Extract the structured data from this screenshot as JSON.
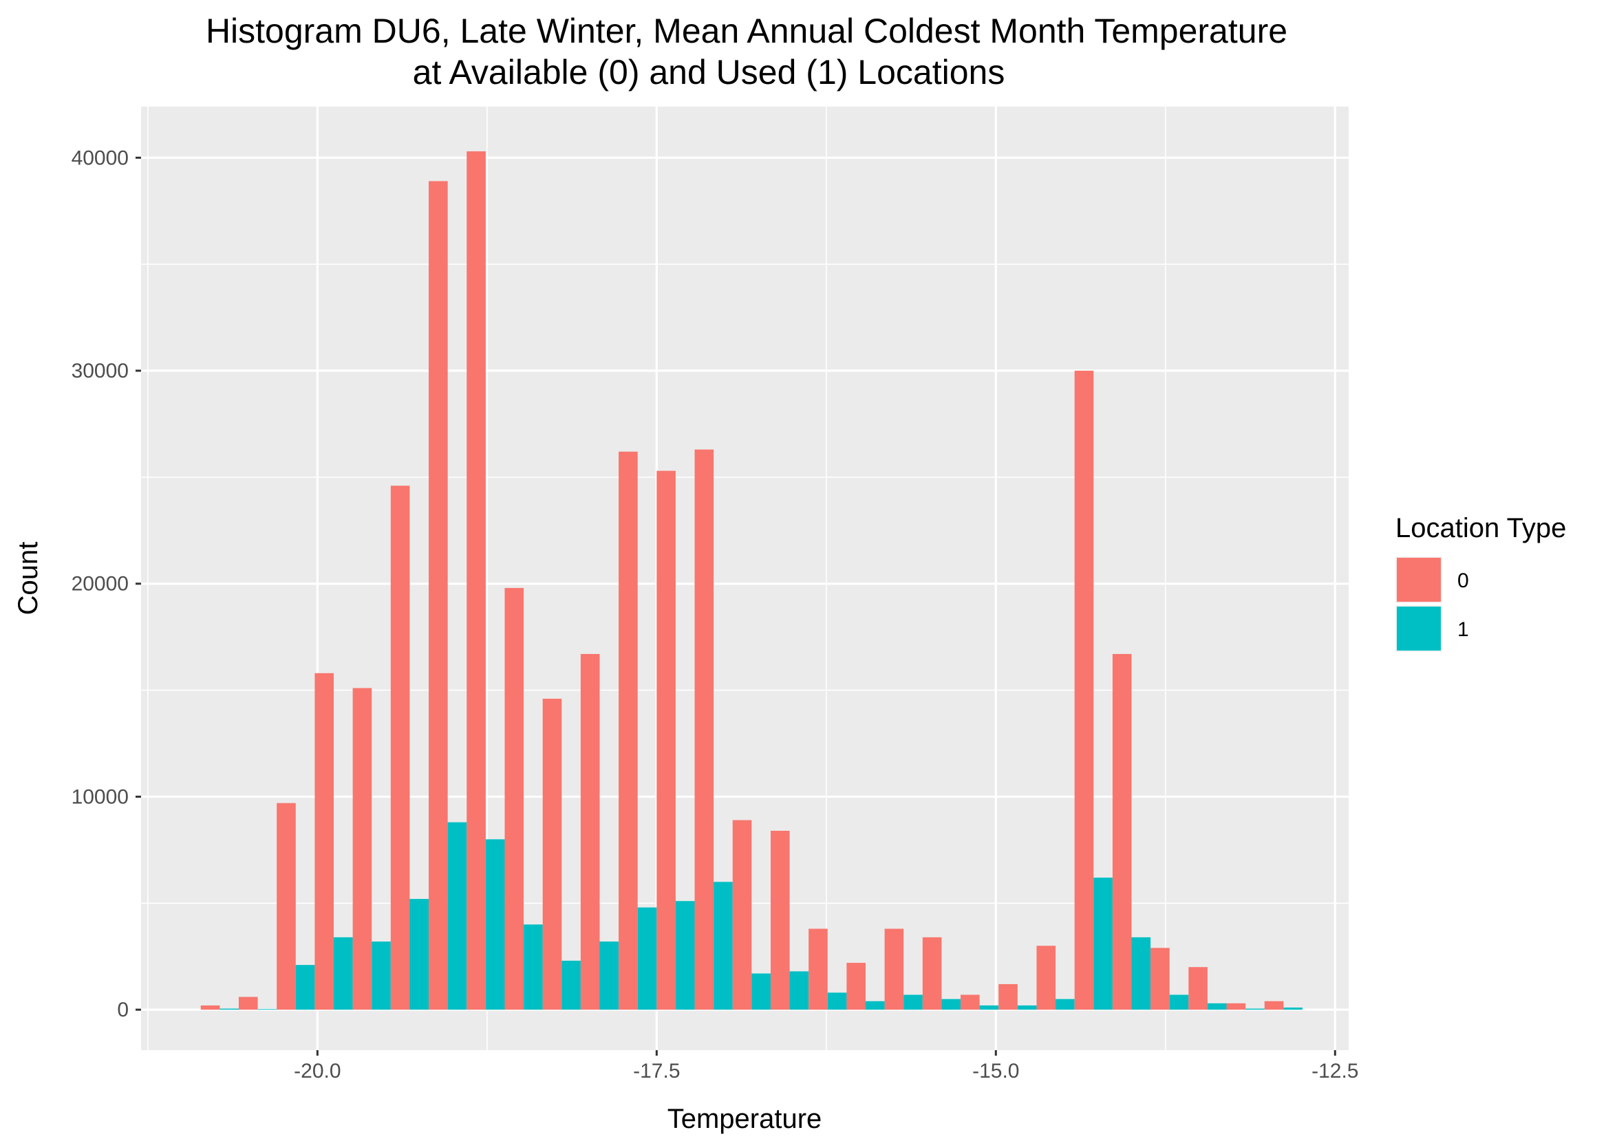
{
  "chart_data": {
    "type": "bar",
    "title": "Histogram DU6, Late Winter, Mean Annual Coldest Month Temperature",
    "subtitle": "at Available (0) and Used (1) Locations",
    "xlabel": "Temperature",
    "ylabel": "Count",
    "xlim": [
      -21.3,
      -12.4
    ],
    "ylim": [
      -1900,
      42400
    ],
    "x_ticks": [
      {
        "value": -20.0,
        "label": "-20.0"
      },
      {
        "value": -17.5,
        "label": "-17.5"
      },
      {
        "value": -15.0,
        "label": "-15.0"
      },
      {
        "value": -12.5,
        "label": "-12.5"
      }
    ],
    "y_ticks": [
      {
        "value": 0,
        "label": "0"
      },
      {
        "value": 10000,
        "label": "10000"
      },
      {
        "value": 20000,
        "label": "20000"
      },
      {
        "value": 30000,
        "label": "30000"
      },
      {
        "value": 40000,
        "label": "40000"
      }
    ],
    "grid": true,
    "legend": {
      "title": "Location Type",
      "position": "right"
    },
    "bin_width": 0.28,
    "x": [
      -20.72,
      -20.44,
      -20.16,
      -19.88,
      -19.6,
      -19.32,
      -19.04,
      -18.76,
      -18.48,
      -18.2,
      -17.92,
      -17.64,
      -17.36,
      -17.08,
      -16.8,
      -16.52,
      -16.24,
      -15.96,
      -15.68,
      -15.4,
      -15.12,
      -14.84,
      -14.56,
      -14.28,
      -14.0,
      -13.72,
      -13.44,
      -13.16,
      -12.88
    ],
    "series": [
      {
        "name": "0",
        "color": "#F8766D",
        "values": [
          200,
          600,
          9700,
          15800,
          15100,
          24600,
          38900,
          40300,
          19800,
          14600,
          16700,
          26200,
          25300,
          26300,
          8900,
          8400,
          3800,
          2200,
          3800,
          3400,
          700,
          1200,
          3000,
          30000,
          16700,
          2900,
          2000,
          300,
          400
        ]
      },
      {
        "name": "1",
        "color": "#00BFC4",
        "values": [
          50,
          30,
          2100,
          3400,
          3200,
          5200,
          8800,
          8000,
          4000,
          2300,
          3200,
          4800,
          5100,
          6000,
          1700,
          1800,
          800,
          400,
          700,
          500,
          200,
          200,
          500,
          6200,
          3400,
          700,
          300,
          50,
          100
        ]
      }
    ]
  }
}
